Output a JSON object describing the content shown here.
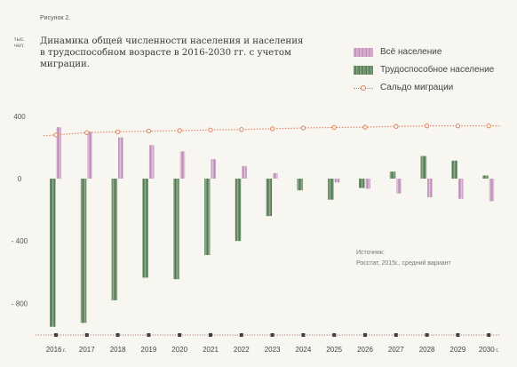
{
  "figure_label": "Рисунок 2.",
  "unit_label": "тыс. чел.",
  "title_line1": "Динамика общей численности населения и населения",
  "title_line2": "в трудоспособном возрасте в 2016-2030 гг. с учетом миграции.",
  "legend": {
    "total": "Всё население",
    "working": "Трудоспособное население",
    "migration": "Сальдо миграции"
  },
  "source": {
    "line1": "Источник:",
    "line2": "Росстат, 2015г., средний вариант"
  },
  "colors": {
    "total": "#c99ec2",
    "working": "#5f835d",
    "migration": "#e07a53",
    "baseline": "#b27a72"
  },
  "chart_data": {
    "type": "bar",
    "categories": [
      "2016",
      "2017",
      "2018",
      "2019",
      "2020",
      "2021",
      "2022",
      "2023",
      "2024",
      "2025",
      "2026",
      "2027",
      "2028",
      "2029",
      "2030"
    ],
    "category_suffix": {
      "2016": "г.",
      "2030": "г."
    },
    "series": [
      {
        "name": "Всё население",
        "values": [
          330,
          300,
          265,
          215,
          175,
          125,
          80,
          35,
          0,
          -25,
          -65,
          -95,
          -120,
          -130,
          -145
        ]
      },
      {
        "name": "Трудоспособное население",
        "values": [
          -950,
          -925,
          -780,
          -635,
          -645,
          -490,
          -400,
          -240,
          -75,
          -135,
          -60,
          45,
          145,
          115,
          20
        ]
      },
      {
        "name": "Сальдо миграции",
        "values": [
          280,
          295,
          300,
          305,
          308,
          312,
          315,
          320,
          325,
          328,
          330,
          335,
          338,
          338,
          338
        ]
      }
    ],
    "y_ticks": [
      "400",
      "0",
      "- 400",
      "- 800"
    ],
    "y_tick_values": [
      400,
      0,
      -400,
      -800
    ],
    "ylim": [
      -1000,
      450
    ],
    "legend_position": "top-right"
  }
}
